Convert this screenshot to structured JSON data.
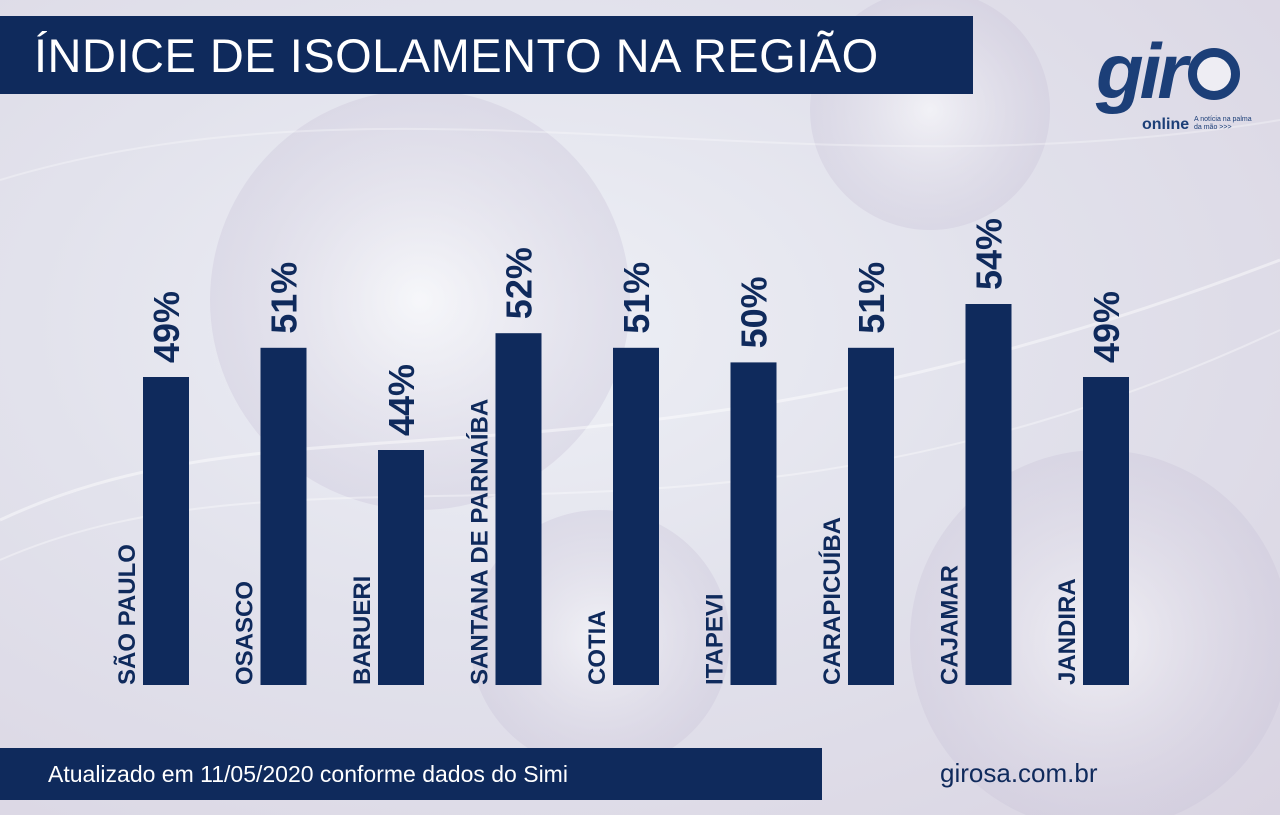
{
  "title": "ÍNDICE DE ISOLAMENTO NA REGIÃO",
  "logo": {
    "word": "gir",
    "sub": "online",
    "tagline": "A notícia na palma da mão >>>"
  },
  "footer": {
    "note": "Atualizado em 11/05/2020 conforme dados do Simi",
    "site": "girosa.com.br"
  },
  "colors": {
    "bar": "#0f2a5c",
    "value_label": "#0f2a5c",
    "city_label": "#0f2a5c"
  },
  "chart_data": {
    "type": "bar",
    "title": "ÍNDICE DE ISOLAMENTO NA REGIÃO",
    "categories": [
      "SÃO PAULO",
      "OSASCO",
      "BARUERI",
      "SANTANA DE PARNAÍBA",
      "COTIA",
      "ITAPEVI",
      "CARAPICUÍBA",
      "CAJAMAR",
      "JANDIRA"
    ],
    "values": [
      49,
      51,
      44,
      52,
      51,
      50,
      51,
      54,
      49
    ],
    "value_labels": [
      "49%",
      "51%",
      "44%",
      "52%",
      "51%",
      "50%",
      "51%",
      "54%",
      "49%"
    ],
    "unit": "%",
    "grid": false,
    "legend": "none"
  }
}
